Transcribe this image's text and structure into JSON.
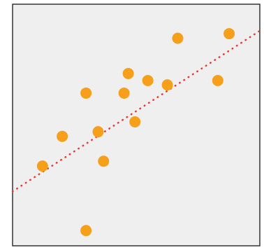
{
  "chart_data": {
    "type": "scatter",
    "title": "",
    "xlabel": "",
    "ylabel": "",
    "grid": false,
    "legend": "none",
    "xlim": [
      0,
      100
    ],
    "ylim": [
      0,
      100
    ],
    "colors": {
      "background": "#ffffff",
      "plot_background": "#efefef",
      "plot_border": "#333333",
      "points": "#f59f1a",
      "trend_line": "#e53935"
    },
    "series": [
      {
        "points": [
          {
            "x": 12.1,
            "y": 33.0
          },
          {
            "x": 20.1,
            "y": 45.3
          },
          {
            "x": 29.7,
            "y": 6.3
          },
          {
            "x": 29.7,
            "y": 63.2
          },
          {
            "x": 34.6,
            "y": 47.2
          },
          {
            "x": 36.8,
            "y": 35.0
          },
          {
            "x": 45.1,
            "y": 63.2
          },
          {
            "x": 46.8,
            "y": 71.3
          },
          {
            "x": 49.5,
            "y": 51.3
          },
          {
            "x": 54.7,
            "y": 68.4
          },
          {
            "x": 62.6,
            "y": 66.6
          },
          {
            "x": 66.8,
            "y": 85.9
          },
          {
            "x": 83.0,
            "y": 68.4
          },
          {
            "x": 87.6,
            "y": 87.8
          }
        ]
      }
    ],
    "trend_line": {
      "style": "dotted",
      "points": [
        {
          "x": 0,
          "y": 22.5
        },
        {
          "x": 100,
          "y": 89.0
        }
      ]
    }
  }
}
